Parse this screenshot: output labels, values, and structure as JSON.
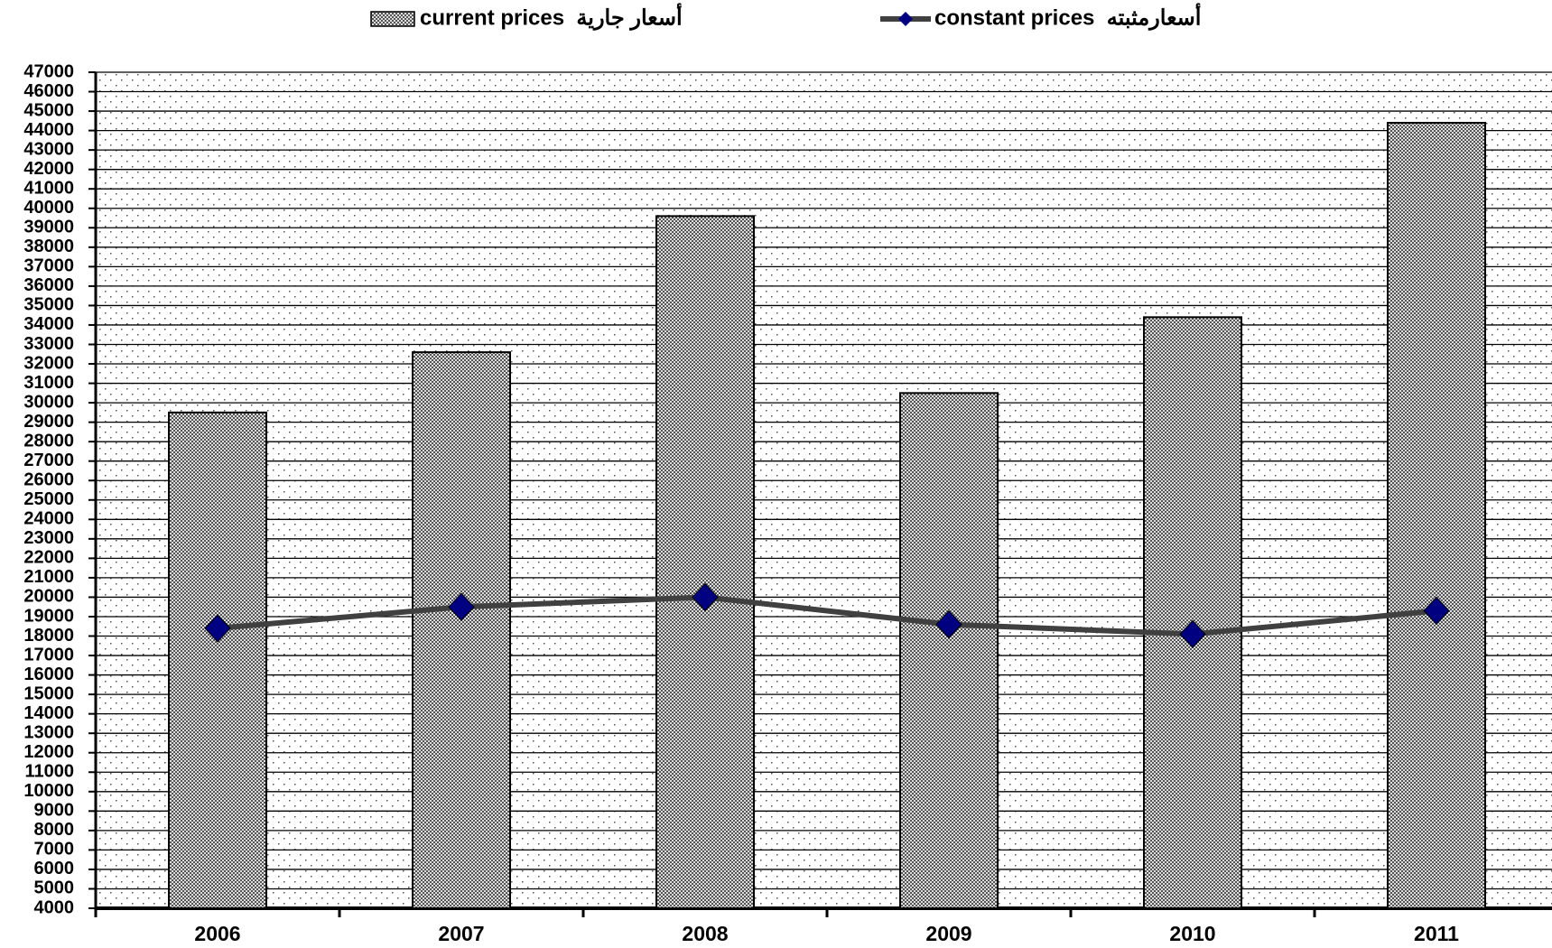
{
  "chart_data": {
    "type": "bar",
    "categories": [
      "2006",
      "2007",
      "2008",
      "2009",
      "2010",
      "2011"
    ],
    "series": [
      {
        "name": "current prices  أسعار جارية",
        "type": "bar",
        "color": "#808080",
        "values": [
          29500,
          32600,
          39600,
          30500,
          34400,
          44400
        ]
      },
      {
        "name": "constant prices  أسعارمثبته",
        "type": "line",
        "color": "#404040",
        "marker_color": "#000080",
        "values": [
          18400,
          19500,
          20000,
          18600,
          18100,
          19300
        ]
      }
    ],
    "ylim": [
      4000,
      47000
    ],
    "yticks": [
      4000,
      5000,
      6000,
      7000,
      8000,
      9000,
      10000,
      11000,
      12000,
      13000,
      14000,
      15000,
      16000,
      17000,
      18000,
      19000,
      20000,
      21000,
      22000,
      23000,
      24000,
      25000,
      26000,
      27000,
      28000,
      29000,
      30000,
      31000,
      32000,
      33000,
      34000,
      35000,
      36000,
      37000,
      38000,
      39000,
      40000,
      41000,
      42000,
      43000,
      44000,
      45000,
      46000,
      47000
    ],
    "grid": true,
    "legend": "top"
  }
}
